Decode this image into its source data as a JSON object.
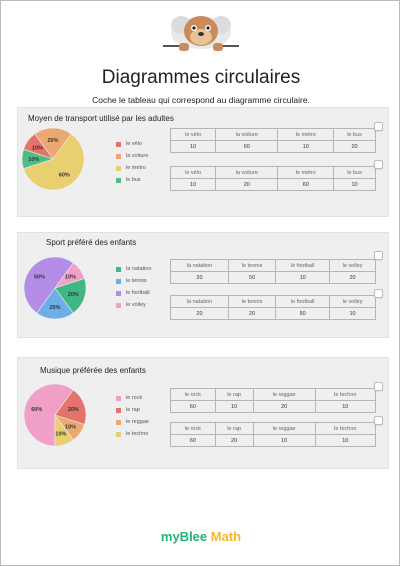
{
  "header": {
    "title": "Diagrammes circulaires",
    "subtitle": "Coche le tableau qui correspond au diagramme circulaire."
  },
  "sections": [
    {
      "title": "Moyen de transport utilisé par les adultes",
      "legend": [
        {
          "label": "le vélo",
          "color": "#e4736b"
        },
        {
          "label": "la voiture",
          "color": "#eca871"
        },
        {
          "label": "le métro",
          "color": "#e8cf6f"
        },
        {
          "label": "le bus",
          "color": "#4dbd86"
        }
      ],
      "slice_labels": [
        "10%",
        "20%",
        "60%",
        "10%"
      ],
      "tables": [
        {
          "headers": [
            "le vélo",
            "la voiture",
            "le métro",
            "le bus"
          ],
          "values": [
            "10",
            "60",
            "10",
            "20"
          ]
        },
        {
          "headers": [
            "le vélo",
            "la voiture",
            "le métro",
            "le bus"
          ],
          "values": [
            "10",
            "20",
            "60",
            "10"
          ]
        }
      ]
    },
    {
      "title": "Sport préféré des enfants",
      "legend": [
        {
          "label": "la natation",
          "color": "#3fb684"
        },
        {
          "label": "le tennis",
          "color": "#6eaee6"
        },
        {
          "label": "le football",
          "color": "#b38de8"
        },
        {
          "label": "le volley",
          "color": "#f2a0c9"
        }
      ],
      "slice_labels": [
        "20%",
        "20%",
        "50%",
        "10%"
      ],
      "tables": [
        {
          "headers": [
            "la natation",
            "le tennis",
            "le football",
            "le volley"
          ],
          "values": [
            "20",
            "50",
            "10",
            "20"
          ]
        },
        {
          "headers": [
            "la natation",
            "le tennis",
            "le football",
            "le volley"
          ],
          "values": [
            "20",
            "20",
            "50",
            "10"
          ]
        }
      ]
    },
    {
      "title": "Musique préférée des enfants",
      "legend": [
        {
          "label": "le rock",
          "color": "#f0a0c6"
        },
        {
          "label": "le rap",
          "color": "#e4736b"
        },
        {
          "label": "le reggae",
          "color": "#eca871"
        },
        {
          "label": "le techno",
          "color": "#e8cf6f"
        }
      ],
      "slice_labels": [
        "60%",
        "20%",
        "10%",
        "10%"
      ],
      "tables": [
        {
          "headers": [
            "le rock",
            "le rap",
            "le reggae",
            "le techno"
          ],
          "values": [
            "60",
            "10",
            "20",
            "10"
          ]
        },
        {
          "headers": [
            "le rock",
            "le rap",
            "le reggae",
            "le techno"
          ],
          "values": [
            "60",
            "20",
            "10",
            "10"
          ]
        }
      ]
    }
  ],
  "chart_data": [
    {
      "type": "pie",
      "title": "Moyen de transport utilisé par les adultes",
      "categories": [
        "le vélo",
        "la voiture",
        "le métro",
        "le bus"
      ],
      "values": [
        10,
        20,
        60,
        10
      ]
    },
    {
      "type": "pie",
      "title": "Sport préféré des enfants",
      "categories": [
        "la natation",
        "le tennis",
        "le football",
        "le volley"
      ],
      "values": [
        20,
        20,
        50,
        10
      ]
    },
    {
      "type": "pie",
      "title": "Musique préférée des enfants",
      "categories": [
        "le rock",
        "le rap",
        "le reggae",
        "le techno"
      ],
      "values": [
        60,
        20,
        10,
        10
      ]
    }
  ],
  "brand": {
    "part1": "myBlee",
    "part2": "Math"
  }
}
